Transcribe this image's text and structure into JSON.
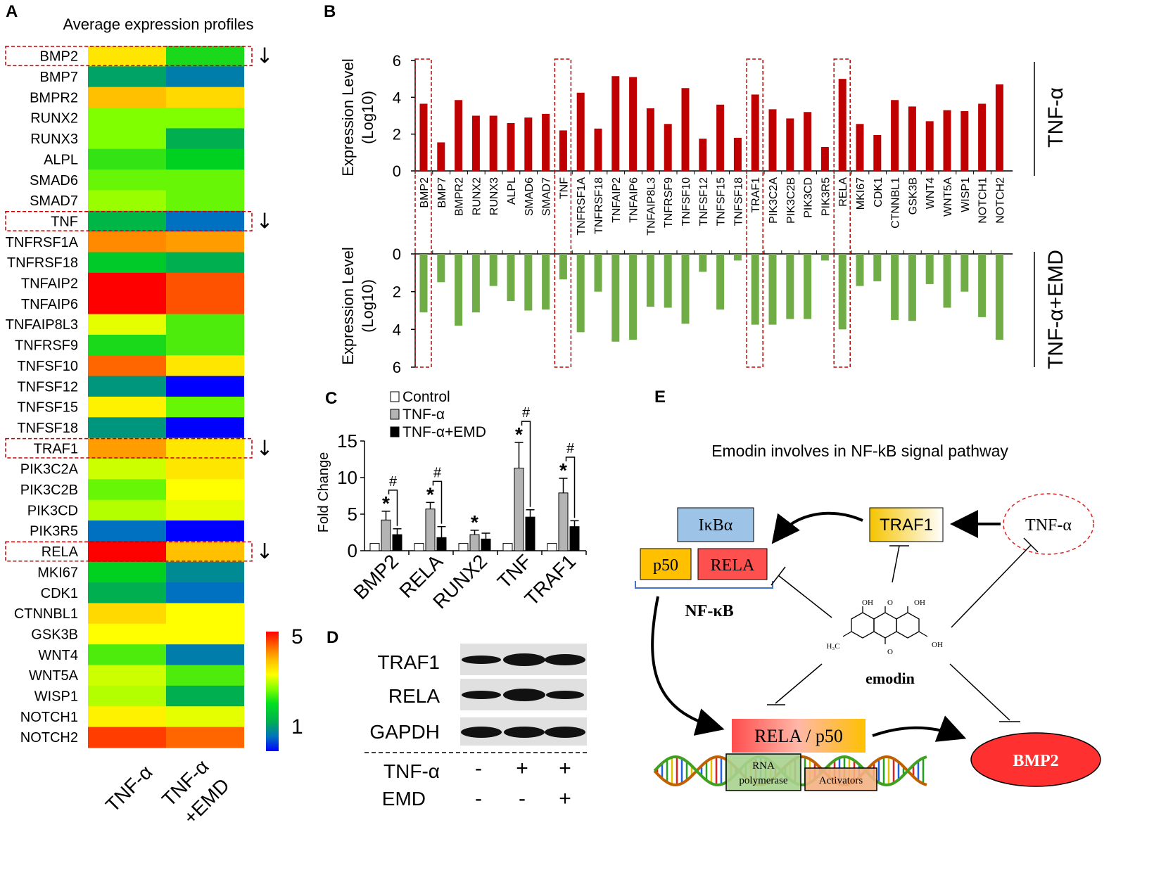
{
  "colors": {
    "tnf_bar": "#c00000",
    "emd_bar": "#70ad47",
    "highlight_box": "#c00000",
    "heat_stops": [
      "#0000ff",
      "#0070c0",
      "#00b050",
      "#00d020",
      "#80ff00",
      "#ffff00",
      "#ffc000",
      "#ff6600",
      "#ff0000"
    ],
    "ikba_fill": "#9dc3e6",
    "p50_fill": "#ffc000",
    "rela_fill": "#ff5050",
    "rna_pol_fill": "#a9d18e",
    "activators_fill": "#f4b183",
    "bmp2_fill": "#ff3030"
  },
  "panel_letters": {
    "a": "A",
    "b": "B",
    "c": "C",
    "d": "D",
    "e": "E"
  },
  "heatmap": {
    "title": "Average expression profiles",
    "columns": [
      "TNF-α",
      "TNF-α",
      "+EMD"
    ],
    "scale": {
      "max": "5",
      "min": "1",
      "range": [
        1,
        5
      ]
    },
    "genes": [
      "BMP2",
      "BMP7",
      "BMPR2",
      "RUNX2",
      "RUNX3",
      "ALPL",
      "SMAD6",
      "SMAD7",
      "TNF",
      "TNFRSF1A",
      "TNFRSF18",
      "TNFAIP2",
      "TNFAIP6",
      "TNFAIP8L3",
      "TNFRSF9",
      "TNFSF10",
      "TNFSF12",
      "TNFSF15",
      "TNFSF18",
      "TRAF1",
      "PIK3C2A",
      "PIK3C2B",
      "PIK3CD",
      "PIK3R5",
      "RELA",
      "MKI67",
      "CDK1",
      "CTNNBL1",
      "GSK3B",
      "WNT4",
      "WNT5A",
      "WISP1",
      "NOTCH1",
      "NOTCH2"
    ],
    "tnf_values": [
      3.7,
      1.9,
      4.0,
      3.0,
      3.0,
      2.7,
      2.9,
      3.1,
      2.1,
      4.3,
      2.4,
      5.0,
      5.0,
      3.4,
      2.6,
      4.5,
      1.8,
      3.6,
      1.8,
      4.2,
      3.3,
      2.9,
      3.2,
      1.5,
      5.0,
      2.5,
      2.0,
      3.8,
      3.5,
      2.8,
      3.3,
      3.2,
      3.6,
      4.7
    ],
    "emd_values": [
      2.6,
      1.6,
      3.8,
      3.0,
      2.0,
      2.5,
      2.9,
      2.9,
      1.5,
      4.2,
      2.0,
      4.6,
      4.6,
      2.8,
      2.8,
      3.7,
      0.9,
      2.9,
      0.3,
      3.7,
      3.7,
      3.5,
      3.4,
      0.3,
      4.0,
      1.7,
      1.5,
      3.5,
      3.5,
      1.6,
      2.8,
      2.0,
      3.4,
      4.5
    ],
    "marked_genes": [
      "BMP2",
      "TNF",
      "TRAF1",
      "RELA"
    ],
    "arrow_glyph": "↓"
  },
  "chart_data": [
    {
      "panel": "B",
      "type": "bar",
      "categories": [
        "BMP2",
        "BMP7",
        "BMPR2",
        "RUNX2",
        "RUNX3",
        "ALPL",
        "SMAD6",
        "SMAD7",
        "TNF",
        "TNFRSF1A",
        "TNFRSF18",
        "TNFAIP2",
        "TNFAIP6",
        "TNFAIP8L3",
        "TNFRSF9",
        "TNFSF10",
        "TNFSF12",
        "TNFSF15",
        "TNFSF18",
        "TRAF1",
        "PIK3C2A",
        "PIK3C2B",
        "PIK3CD",
        "PIK3R5",
        "RELA",
        "MKI67",
        "CDK1",
        "CTNNBL1",
        "GSK3B",
        "WNT4",
        "WNT5A",
        "WISP1",
        "NOTCH1",
        "NOTCH2"
      ],
      "series": [
        {
          "name": "TNF-α",
          "values": [
            3.65,
            1.55,
            3.85,
            3.0,
            3.0,
            2.6,
            2.9,
            3.1,
            2.2,
            4.25,
            2.3,
            5.15,
            5.1,
            3.4,
            2.55,
            4.5,
            1.75,
            3.6,
            1.8,
            4.15,
            3.35,
            2.85,
            3.2,
            1.3,
            5.0,
            2.55,
            1.95,
            3.85,
            3.5,
            2.7,
            3.3,
            3.25,
            3.65,
            4.7
          ]
        },
        {
          "name": "TNF-α+EMD",
          "values": [
            3.1,
            1.5,
            3.8,
            3.1,
            1.7,
            2.5,
            3.0,
            2.95,
            1.35,
            4.15,
            2.0,
            4.65,
            4.55,
            2.8,
            2.85,
            3.7,
            0.95,
            2.95,
            0.35,
            3.75,
            3.75,
            3.45,
            3.45,
            0.35,
            4.0,
            1.7,
            1.45,
            3.5,
            3.55,
            1.6,
            2.85,
            2.0,
            3.35,
            4.55
          ]
        }
      ],
      "ylabel_line1": "Expression Level",
      "ylabel_line2": "(Log10)",
      "ylim": [
        0,
        6
      ],
      "yticks": [
        "0",
        "2",
        "4",
        "6"
      ],
      "series_labels": [
        "TNF-α",
        "TNF-α+EMD"
      ],
      "highlighted_categories": [
        "BMP2",
        "TNF",
        "TRAF1",
        "RELA"
      ]
    },
    {
      "panel": "C",
      "type": "bar",
      "categories": [
        "BMP2",
        "RELA",
        "RUNX2",
        "TNF",
        "TRAF1"
      ],
      "series": [
        {
          "name": "Control",
          "values": [
            1.0,
            1.0,
            1.0,
            1.0,
            1.0
          ],
          "errors": [
            0,
            0,
            0,
            0,
            0
          ]
        },
        {
          "name": "TNF-α",
          "values": [
            4.2,
            5.7,
            2.2,
            11.3,
            7.9
          ],
          "errors": [
            1.2,
            0.9,
            0.6,
            3.5,
            2.0
          ]
        },
        {
          "name": "TNF-α+EMD",
          "values": [
            2.2,
            1.8,
            1.6,
            4.6,
            3.3
          ],
          "errors": [
            0.8,
            1.5,
            0.8,
            1.0,
            0.8
          ]
        }
      ],
      "ylabel": "Fold Change",
      "ylim": [
        0,
        15
      ],
      "yticks": [
        "0",
        "5",
        "10",
        "15"
      ],
      "star_symbol": "*",
      "hash_symbol": "#",
      "stars": [
        true,
        true,
        true,
        true,
        true
      ],
      "hashes": [
        true,
        true,
        false,
        true,
        true
      ],
      "legend_position": "top-left"
    }
  ],
  "blot": {
    "rows": [
      "TRAF1",
      "RELA",
      "GAPDH"
    ],
    "conditions": [
      {
        "name": "TNF-α",
        "signs": [
          "-",
          "+",
          "+"
        ]
      },
      {
        "name": "EMD",
        "signs": [
          "-",
          "-",
          "+"
        ]
      }
    ]
  },
  "pathway": {
    "title": "Emodin involves in NF-kB signal pathway",
    "ikba": "IκBα",
    "p50": "p50",
    "rela": "RELA",
    "nfkb": "NF-κB",
    "traf1": "TRAF1",
    "tnfa": "TNF-α",
    "emodin": "emodin",
    "complex_rela": "RELA",
    "complex_sep": " / ",
    "complex_p50": "p50",
    "rna_pol_line1": "RNA",
    "rna_pol_line2": "polymerase",
    "activators": "Activators",
    "bmp2": "BMP2",
    "oh1": "OH",
    "o1": "O",
    "oh2": "OH",
    "oh3": "OH",
    "o2": "O",
    "h3c": "H₃C"
  }
}
